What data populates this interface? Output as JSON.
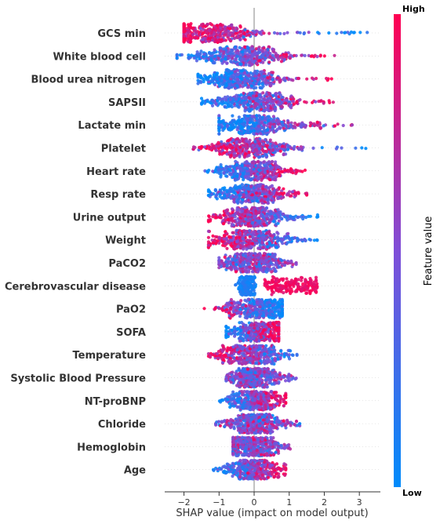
{
  "chart_data": {
    "type": "scatter",
    "subtype": "shap-beeswarm",
    "xlabel": "SHAP value (impact on model output)",
    "xlim": [
      -2.55,
      3.6
    ],
    "xticks": [
      -2,
      -1,
      0,
      1,
      2,
      3
    ],
    "colorbar": {
      "title": "Feature value",
      "high": "High",
      "low": "Low",
      "low_color": "#008bfb",
      "high_color": "#ff0052"
    },
    "features": [
      {
        "name": "GCS min",
        "min": -2.0,
        "max": 3.3,
        "spread": 0.7,
        "pattern": "neg-high",
        "core": -1.2
      },
      {
        "name": "White blood cell",
        "min": -2.2,
        "max": 2.3,
        "spread": 0.7,
        "pattern": "pos-high",
        "core": -0.3
      },
      {
        "name": "Blood urea nitrogen ",
        "min": -1.6,
        "max": 2.5,
        "spread": 0.6,
        "pattern": "pos-high",
        "core": -0.4
      },
      {
        "name": "SAPSII",
        "min": -1.5,
        "max": 2.3,
        "spread": 0.6,
        "pattern": "pos-high",
        "core": 0.0
      },
      {
        "name": "Lactate min",
        "min": -1.0,
        "max": 2.9,
        "spread": 0.6,
        "pattern": "pos-high",
        "core": 0.0
      },
      {
        "name": "Platelet",
        "min": -1.8,
        "max": 3.2,
        "spread": 0.6,
        "pattern": "neg-high",
        "core": -0.2
      },
      {
        "name": "Heart rate",
        "min": -1.4,
        "max": 1.5,
        "spread": 0.5,
        "pattern": "pos-high",
        "core": 0.0
      },
      {
        "name": "Resp rate",
        "min": -1.3,
        "max": 1.5,
        "spread": 0.5,
        "pattern": "pos-high",
        "core": -0.1
      },
      {
        "name": "Urine output",
        "min": -1.3,
        "max": 1.9,
        "spread": 0.5,
        "pattern": "neg-high",
        "core": -0.1
      },
      {
        "name": "Weight",
        "min": -1.3,
        "max": 1.8,
        "spread": 0.6,
        "pattern": "neg-high",
        "core": -0.1
      },
      {
        "name": "PaCO2",
        "min": -1.0,
        "max": 1.2,
        "spread": 0.5,
        "pattern": "mixed",
        "core": 0.0
      },
      {
        "name": "Cerebrovascular disease",
        "min": -0.5,
        "max": 1.8,
        "spread": 0.4,
        "pattern": "binary",
        "core": -0.2
      },
      {
        "name": "PaO2",
        "min": -1.5,
        "max": 0.8,
        "spread": 0.5,
        "pattern": "neg-high",
        "core": 0.1
      },
      {
        "name": "SOFA",
        "min": -0.8,
        "max": 0.7,
        "spread": 0.4,
        "pattern": "pos-high",
        "core": 0.1
      },
      {
        "name": "Temperature",
        "min": -1.3,
        "max": 1.4,
        "spread": 0.5,
        "pattern": "neg-high",
        "core": -0.1
      },
      {
        "name": "Systolic Blood Pressure",
        "min": -0.8,
        "max": 1.2,
        "spread": 0.4,
        "pattern": "mixed",
        "core": 0.0
      },
      {
        "name": "NT-proBNP",
        "min": -1.0,
        "max": 0.9,
        "spread": 0.4,
        "pattern": "pos-high",
        "core": 0.0
      },
      {
        "name": "Chloride",
        "min": -1.1,
        "max": 1.3,
        "spread": 0.4,
        "pattern": "mixed",
        "core": 0.0
      },
      {
        "name": "Hemoglobin",
        "min": -0.6,
        "max": 1.1,
        "spread": 0.4,
        "pattern": "mixed",
        "core": 0.0
      },
      {
        "name": "Age",
        "min": -1.2,
        "max": 0.9,
        "spread": 0.4,
        "pattern": "pos-high",
        "core": 0.0
      }
    ]
  }
}
